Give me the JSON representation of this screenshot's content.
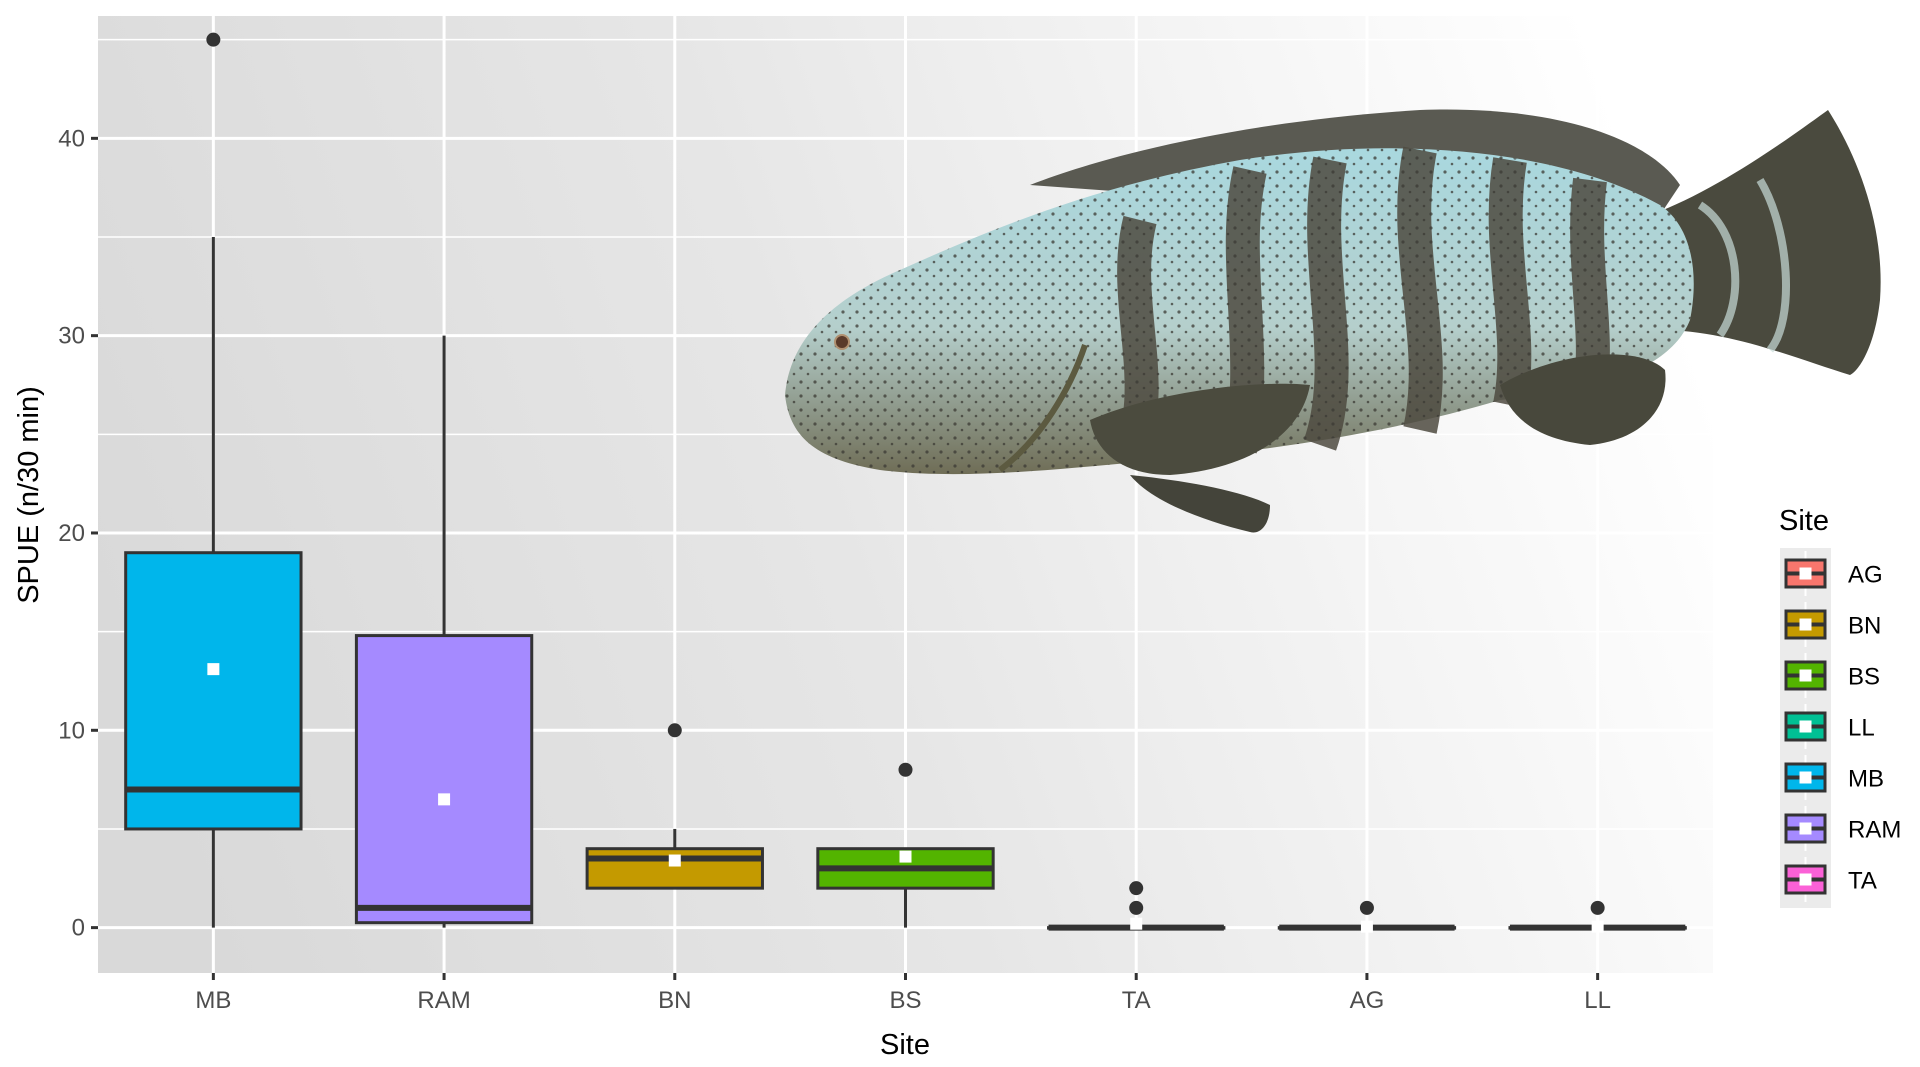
{
  "chart_data": {
    "type": "boxplot",
    "title": "",
    "xlabel": "Site",
    "ylabel": "SPUE (n/30 min)",
    "ylim": [
      -2.3,
      46.2
    ],
    "yticks": [
      0,
      10,
      20,
      30,
      40
    ],
    "grid": true,
    "categories": [
      "MB",
      "RAM",
      "BN",
      "BS",
      "TA",
      "AG",
      "LL"
    ],
    "series": [
      {
        "site": "MB",
        "color": "#00B6EB",
        "lower_whisker": 0,
        "q1": 5,
        "median": 7,
        "q3": 19,
        "upper_whisker": 35,
        "mean": 13.1,
        "outliers": [
          45
        ]
      },
      {
        "site": "RAM",
        "color": "#A58AFF",
        "lower_whisker": 0,
        "q1": 0.25,
        "median": 1,
        "q3": 14.8,
        "upper_whisker": 30,
        "mean": 6.5,
        "outliers": []
      },
      {
        "site": "BN",
        "color": "#C49A00",
        "lower_whisker": 2,
        "q1": 2,
        "median": 3.5,
        "q3": 4,
        "upper_whisker": 5,
        "mean": 3.4,
        "outliers": [
          10
        ]
      },
      {
        "site": "BS",
        "color": "#53B400",
        "lower_whisker": 0,
        "q1": 2,
        "median": 3,
        "q3": 4,
        "upper_whisker": 4,
        "mean": 3.6,
        "outliers": [
          8
        ]
      },
      {
        "site": "TA",
        "color": "#FB61D7",
        "lower_whisker": 0,
        "q1": 0,
        "median": 0,
        "q3": 0,
        "upper_whisker": 0,
        "mean": 0.2,
        "outliers": [
          1,
          2
        ]
      },
      {
        "site": "AG",
        "color": "#F8766D",
        "lower_whisker": 0,
        "q1": 0,
        "median": 0,
        "q3": 0,
        "upper_whisker": 0,
        "mean": 0.05,
        "outliers": [
          1
        ]
      },
      {
        "site": "LL",
        "color": "#00C094",
        "lower_whisker": 0,
        "q1": 0,
        "median": 0,
        "q3": 0,
        "upper_whisker": 0,
        "mean": 0.05,
        "outliers": [
          1
        ]
      }
    ],
    "legend": {
      "title": "Site",
      "position": "right",
      "entries": [
        {
          "label": "AG",
          "color": "#F8766D"
        },
        {
          "label": "BN",
          "color": "#C49A00"
        },
        {
          "label": "BS",
          "color": "#53B400"
        },
        {
          "label": "LL",
          "color": "#00C094"
        },
        {
          "label": "MB",
          "color": "#00B6EB"
        },
        {
          "label": "RAM",
          "color": "#A58AFF"
        },
        {
          "label": "TA",
          "color": "#FB61D7"
        }
      ]
    },
    "mean_marker": "white-square",
    "overlay_image": "goliath-grouper-fish"
  }
}
